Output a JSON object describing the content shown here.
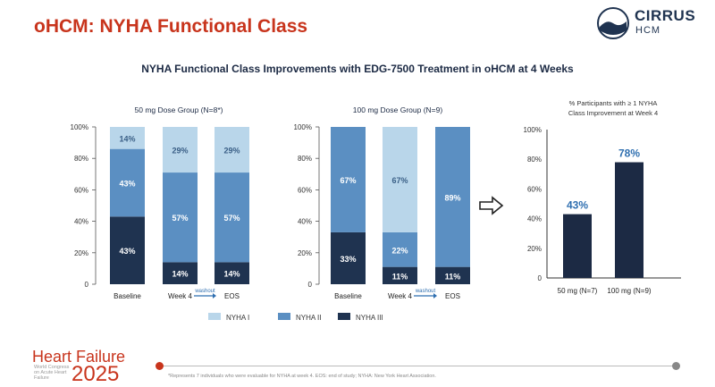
{
  "title": "oHCM: NYHA Functional Class",
  "logo": {
    "name": "CIRRUS",
    "sub": "HCM"
  },
  "subtitle": "NYHA Functional Class Improvements with EDG-7500 Treatment in oHCM at 4 Weeks",
  "colors": {
    "title": "#c8341c",
    "nyha1": "#b9d6ea",
    "nyha2": "#5b8fc2",
    "nyha3": "#1f3350",
    "bar": "#1c2a44"
  },
  "chart_data": [
    {
      "type": "bar",
      "stacked": true,
      "title": "50 mg Dose Group (N=8*)",
      "categories": [
        "Baseline",
        "Week 4",
        "EOS"
      ],
      "y_ticks": [
        "0",
        "20%",
        "40%",
        "60%",
        "80%",
        "100%"
      ],
      "ylim": [
        0,
        100
      ],
      "transition_label": "washout",
      "series": [
        {
          "name": "NYHA III",
          "values": [
            43,
            14,
            14
          ],
          "labels": [
            "43%",
            "14%",
            "14%"
          ]
        },
        {
          "name": "NYHA II",
          "values": [
            43,
            57,
            57
          ],
          "labels": [
            "43%",
            "57%",
            "57%"
          ]
        },
        {
          "name": "NYHA I",
          "values": [
            14,
            29,
            29
          ],
          "labels": [
            "14%",
            "29%",
            "29%"
          ]
        }
      ]
    },
    {
      "type": "bar",
      "stacked": true,
      "title": "100 mg Dose Group (N=9)",
      "categories": [
        "Baseline",
        "Week 4",
        "EOS"
      ],
      "y_ticks": [
        "0",
        "20%",
        "40%",
        "60%",
        "80%",
        "100%"
      ],
      "ylim": [
        0,
        100
      ],
      "transition_label": "washout",
      "series": [
        {
          "name": "NYHA III",
          "values": [
            33,
            11,
            11
          ],
          "labels": [
            "33%",
            "11%",
            "11%"
          ]
        },
        {
          "name": "NYHA II",
          "values": [
            67,
            22,
            89
          ],
          "labels": [
            "67%",
            "22%",
            "89%"
          ]
        },
        {
          "name": "NYHA I",
          "values": [
            0,
            67,
            0
          ],
          "labels": [
            "",
            "67%",
            ""
          ]
        }
      ]
    },
    {
      "type": "bar",
      "title": "% Participants with ≥ 1 NYHA Class Improvement at Week 4",
      "categories": [
        "50 mg (N=7)",
        "100 mg (N=9)"
      ],
      "values": [
        43,
        78
      ],
      "labels": [
        "43%",
        "78%"
      ],
      "y_ticks": [
        "0",
        "20%",
        "40%",
        "60%",
        "80%",
        "100%"
      ],
      "ylim": [
        0,
        100
      ]
    }
  ],
  "legend": [
    {
      "name": "NYHA I",
      "color": "#b9d6ea"
    },
    {
      "name": "NYHA II",
      "color": "#5b8fc2"
    },
    {
      "name": "NYHA III",
      "color": "#1f3350"
    }
  ],
  "footer": {
    "hf_top": "Heart Failure",
    "hf_year": "2025",
    "hf_small": "World Congress on Acute Heart Failure",
    "footnote": "*Represents 7 individuals who were evaluable for NYHA at week 4. EOS: end of study; NYHA: New York Heart Association."
  }
}
